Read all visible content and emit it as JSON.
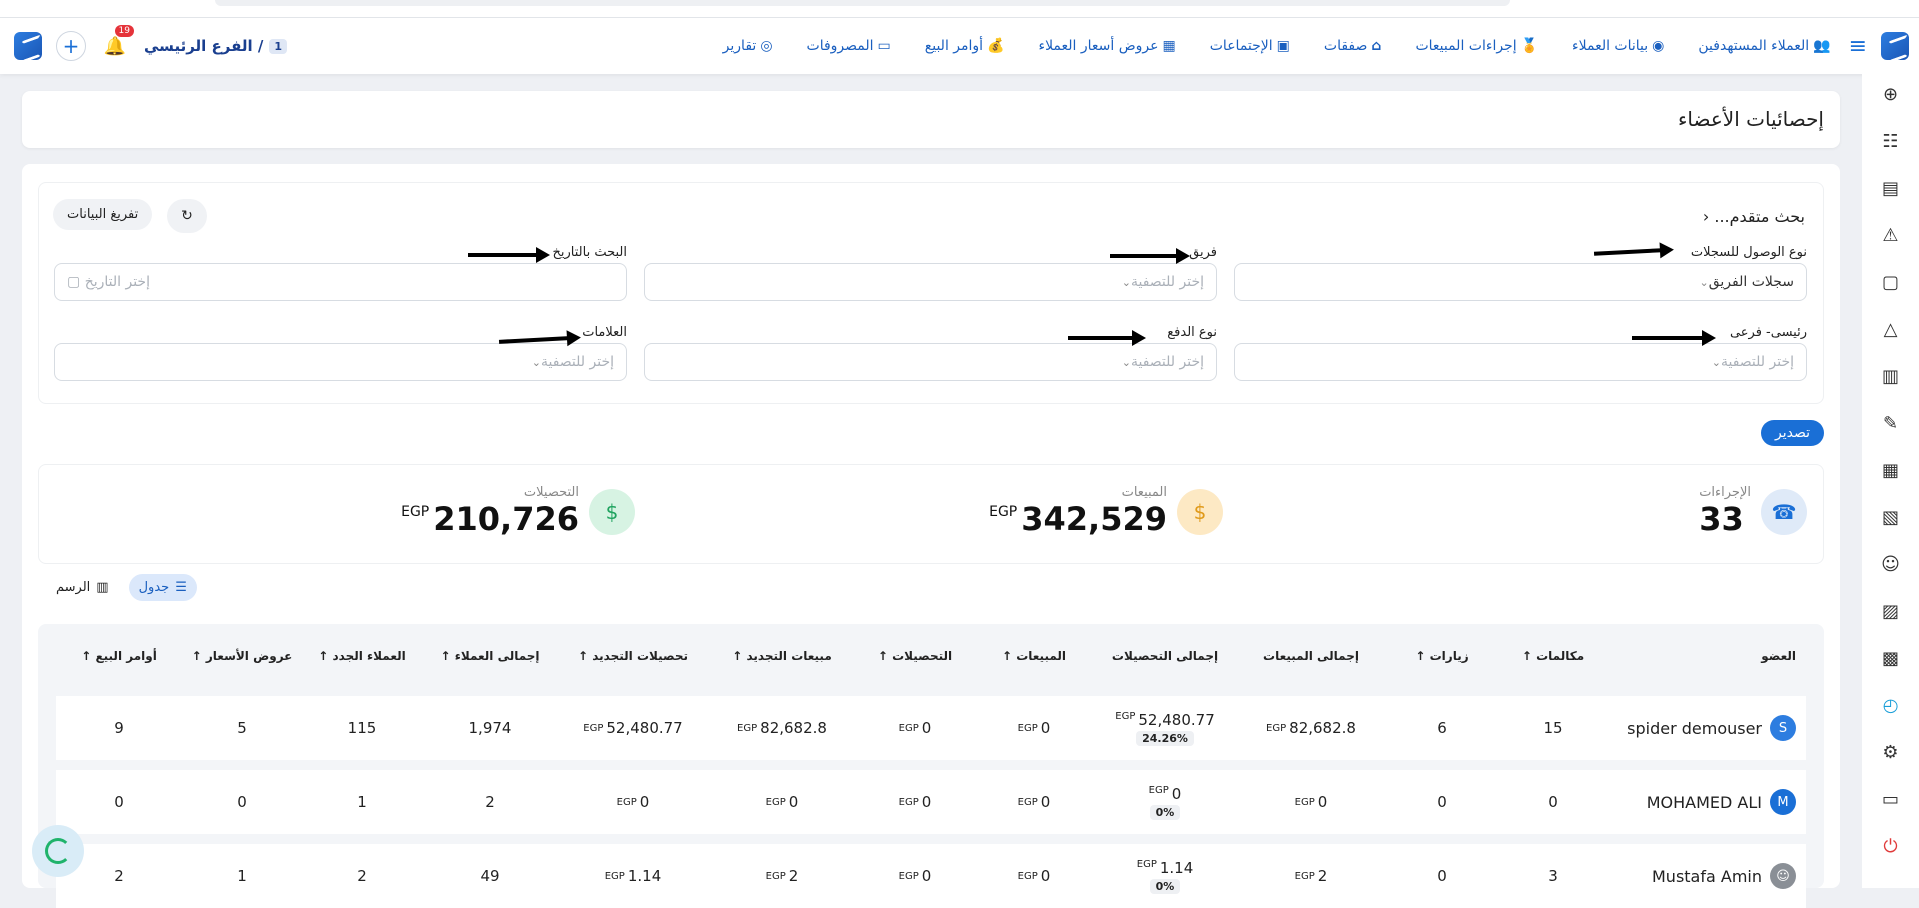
{
  "topbar": {
    "nav": [
      {
        "label": "العملاء المستهدفين",
        "icon": "👥"
      },
      {
        "label": "بيانات العملاء",
        "icon": "◉"
      },
      {
        "label": "إجراءات المبيعات",
        "icon": "🏅"
      },
      {
        "label": "صفقات",
        "icon": "⌂"
      },
      {
        "label": "الإجتماعات",
        "icon": "▣"
      },
      {
        "label": "عروض أسعار العملاء",
        "icon": "▦"
      },
      {
        "label": "أوامر البيع",
        "icon": "💰"
      },
      {
        "label": "المصروفات",
        "icon": "▭"
      },
      {
        "label": "تقارير",
        "icon": "◎"
      }
    ],
    "branch": "الفرع الرئيسي /",
    "branch_num": "1",
    "notif_count": "19"
  },
  "page": {
    "title": "إحصائيات الأعضاء"
  },
  "filters": {
    "advanced": "بحث متقدم...",
    "clear": "تفريغ البيانات",
    "access_label": "نوع الوصول للسجلات",
    "access_value": "سجلات الفريق",
    "team_label": "فريق",
    "team_ph": "إختر للتصفية",
    "date_label": "البحث بالتاريخ",
    "date_ph": "إختر التاريخ",
    "main_label": "رئيسى- فرعى",
    "main_ph": "إختر للتصفية",
    "pay_label": "نوع الدفع",
    "pay_ph": "إختر للتصفية",
    "tags_label": "العلامات",
    "tags_ph": "إختر للتصفية"
  },
  "export": "تصدير",
  "stats": {
    "actions_label": "الإجراءات",
    "actions_value": "33",
    "sales_label": "المبيعات",
    "sales_value": "342,529",
    "sales_cur": "EGP",
    "coll_label": "التحصيلات",
    "coll_value": "210,726",
    "coll_cur": "EGP"
  },
  "view": {
    "table": "جدول",
    "chart": "الرسم"
  },
  "table": {
    "headers": [
      "العضو",
      "مكالمات",
      "زيارات",
      "إجمالى المبيعات",
      "إجمالى التحصيلات",
      "المبيعات",
      "التحصيلات",
      "مبيعات التجديد",
      "تحصيلات التجديد",
      "إجمالى العملاء",
      "العملاء الجدد",
      "عروض الأسعار",
      "أوامر البيع"
    ],
    "rows": [
      {
        "member": "spider demouser",
        "calls": "15",
        "visits": "6",
        "total_sales": "82,682.8",
        "total_coll": "52,480.77",
        "pct": "24.26%",
        "sales": "0",
        "coll": "0",
        "renew_sales": "82,682.8",
        "renew_coll": "52,480.77",
        "total_clients": "1,974",
        "new_clients": "115",
        "quotes": "5",
        "orders": "9"
      },
      {
        "member": "MOHAMED ALI",
        "calls": "0",
        "visits": "0",
        "total_sales": "0",
        "total_coll": "0",
        "pct": "0%",
        "sales": "0",
        "coll": "0",
        "renew_sales": "0",
        "renew_coll": "0",
        "total_clients": "2",
        "new_clients": "1",
        "quotes": "0",
        "orders": "0"
      },
      {
        "member": "Mustafa Amin",
        "calls": "3",
        "visits": "0",
        "total_sales": "2",
        "total_coll": "1.14",
        "pct": "0%",
        "sales": "0",
        "coll": "0",
        "renew_sales": "2",
        "renew_coll": "1.14",
        "total_clients": "49",
        "new_clients": "2",
        "quotes": "1",
        "orders": "2"
      }
    ],
    "avatar_m": "M",
    "cur": "EGP"
  }
}
